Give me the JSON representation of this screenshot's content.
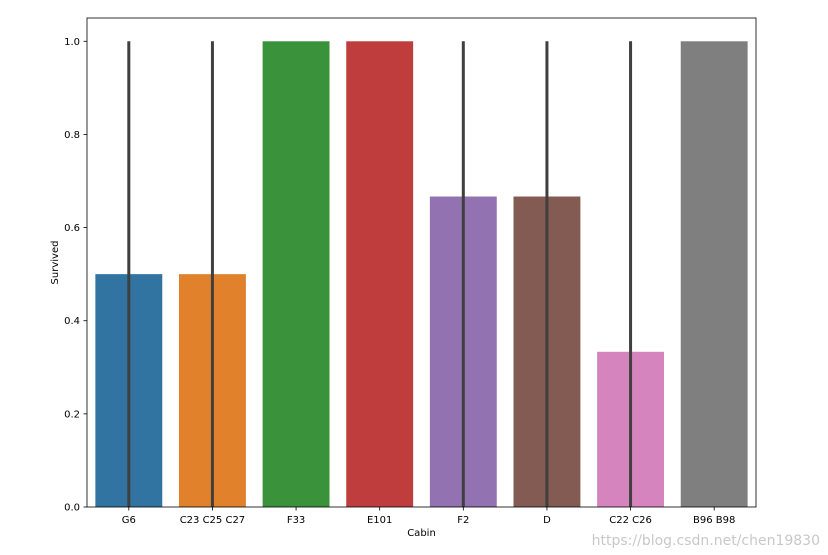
{
  "chart_data": {
    "type": "bar",
    "categories": [
      "G6",
      "C23 C25 C27",
      "F33",
      "E101",
      "F2",
      "D",
      "C22 C26",
      "B96 B98"
    ],
    "values": [
      0.5,
      0.5,
      1.0,
      1.0,
      0.6667,
      0.6667,
      0.3333,
      1.0
    ],
    "error_bars": [
      [
        0,
        1
      ],
      [
        0,
        1
      ],
      null,
      null,
      [
        0,
        1
      ],
      [
        0,
        1
      ],
      [
        0,
        1
      ],
      null
    ],
    "colors": [
      "#3274a1",
      "#e1812c",
      "#3a923a",
      "#c03d3e",
      "#9372b2",
      "#845b53",
      "#d684bd",
      "#7f7f7f"
    ],
    "error_bar_color": "#3f3f3f",
    "xlabel": "Cabin",
    "ylabel": "Survived",
    "ylim": [
      0,
      1.05
    ],
    "yticks": [
      0.0,
      0.2,
      0.4,
      0.6,
      0.8,
      1.0
    ],
    "ytick_labels": [
      "0.0",
      "0.2",
      "0.4",
      "0.6",
      "0.8",
      "1.0"
    ],
    "grid": false
  },
  "watermark": "https://blog.csdn.net/chen19830"
}
